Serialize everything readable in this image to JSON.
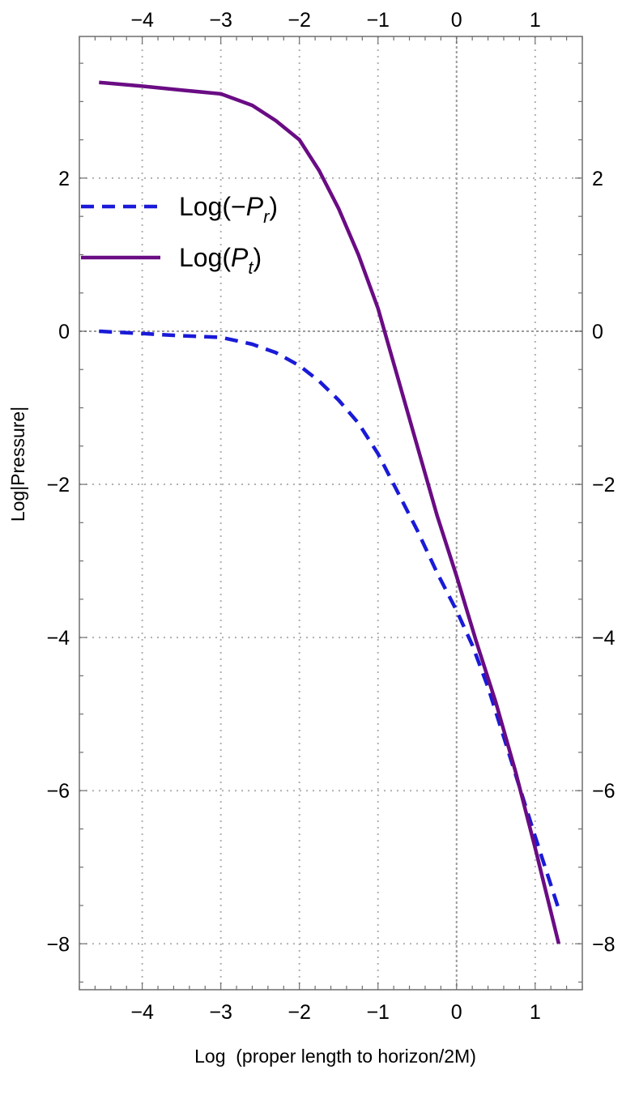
{
  "chart_data": {
    "type": "line",
    "xlabel": "Log  (proper length to horizon/2M)",
    "ylabel": "Log|Pressure|",
    "xlim": [
      -4.8,
      1.6
    ],
    "ylim": [
      -8.6,
      3.85
    ],
    "x_ticks": [
      -4,
      -3,
      -2,
      -1,
      0,
      1
    ],
    "y_ticks": [
      -8,
      -6,
      -4,
      -2,
      0,
      2
    ],
    "x_tick_labels": [
      "−4",
      "−3",
      "−2",
      "−1",
      "0",
      "1"
    ],
    "y_tick_labels": [
      "−8",
      "−6",
      "−4",
      "−2",
      "0",
      "2"
    ],
    "grid": true,
    "legend_position": "upper-left",
    "series": [
      {
        "name": "Log(−P_r)",
        "legend_text": "Log(−",
        "legend_symbol": "P",
        "legend_subscript": "r",
        "legend_close": ")",
        "color": "#1a1ad8",
        "style": "dashed",
        "points": [
          [
            -4.55,
            0.0
          ],
          [
            -4.0,
            -0.03
          ],
          [
            -3.5,
            -0.06
          ],
          [
            -3.0,
            -0.08
          ],
          [
            -2.6,
            -0.17
          ],
          [
            -2.3,
            -0.28
          ],
          [
            -2.0,
            -0.45
          ],
          [
            -1.75,
            -0.65
          ],
          [
            -1.5,
            -0.9
          ],
          [
            -1.25,
            -1.2
          ],
          [
            -1.0,
            -1.6
          ],
          [
            -0.75,
            -2.1
          ],
          [
            -0.5,
            -2.6
          ],
          [
            -0.25,
            -3.15
          ],
          [
            0.0,
            -3.65
          ],
          [
            0.2,
            -4.1
          ],
          [
            0.4,
            -4.65
          ],
          [
            0.6,
            -5.3
          ],
          [
            0.8,
            -5.95
          ],
          [
            1.0,
            -6.6
          ],
          [
            1.3,
            -7.55
          ]
        ]
      },
      {
        "name": "Log(P_t)",
        "legend_text": "Log(",
        "legend_symbol": "P",
        "legend_subscript": "t",
        "legend_close": ")",
        "color": "#6a0c84",
        "style": "solid",
        "points": [
          [
            -4.55,
            3.25
          ],
          [
            -4.0,
            3.2
          ],
          [
            -3.5,
            3.15
          ],
          [
            -3.0,
            3.1
          ],
          [
            -2.6,
            2.95
          ],
          [
            -2.3,
            2.75
          ],
          [
            -2.0,
            2.5
          ],
          [
            -1.75,
            2.1
          ],
          [
            -1.5,
            1.6
          ],
          [
            -1.25,
            1.0
          ],
          [
            -1.0,
            0.3
          ],
          [
            -0.75,
            -0.6
          ],
          [
            -0.5,
            -1.5
          ],
          [
            -0.25,
            -2.4
          ],
          [
            0.0,
            -3.2
          ],
          [
            0.25,
            -4.05
          ],
          [
            0.5,
            -4.85
          ],
          [
            0.75,
            -5.75
          ],
          [
            1.0,
            -6.75
          ],
          [
            1.3,
            -8.0
          ]
        ]
      }
    ]
  }
}
